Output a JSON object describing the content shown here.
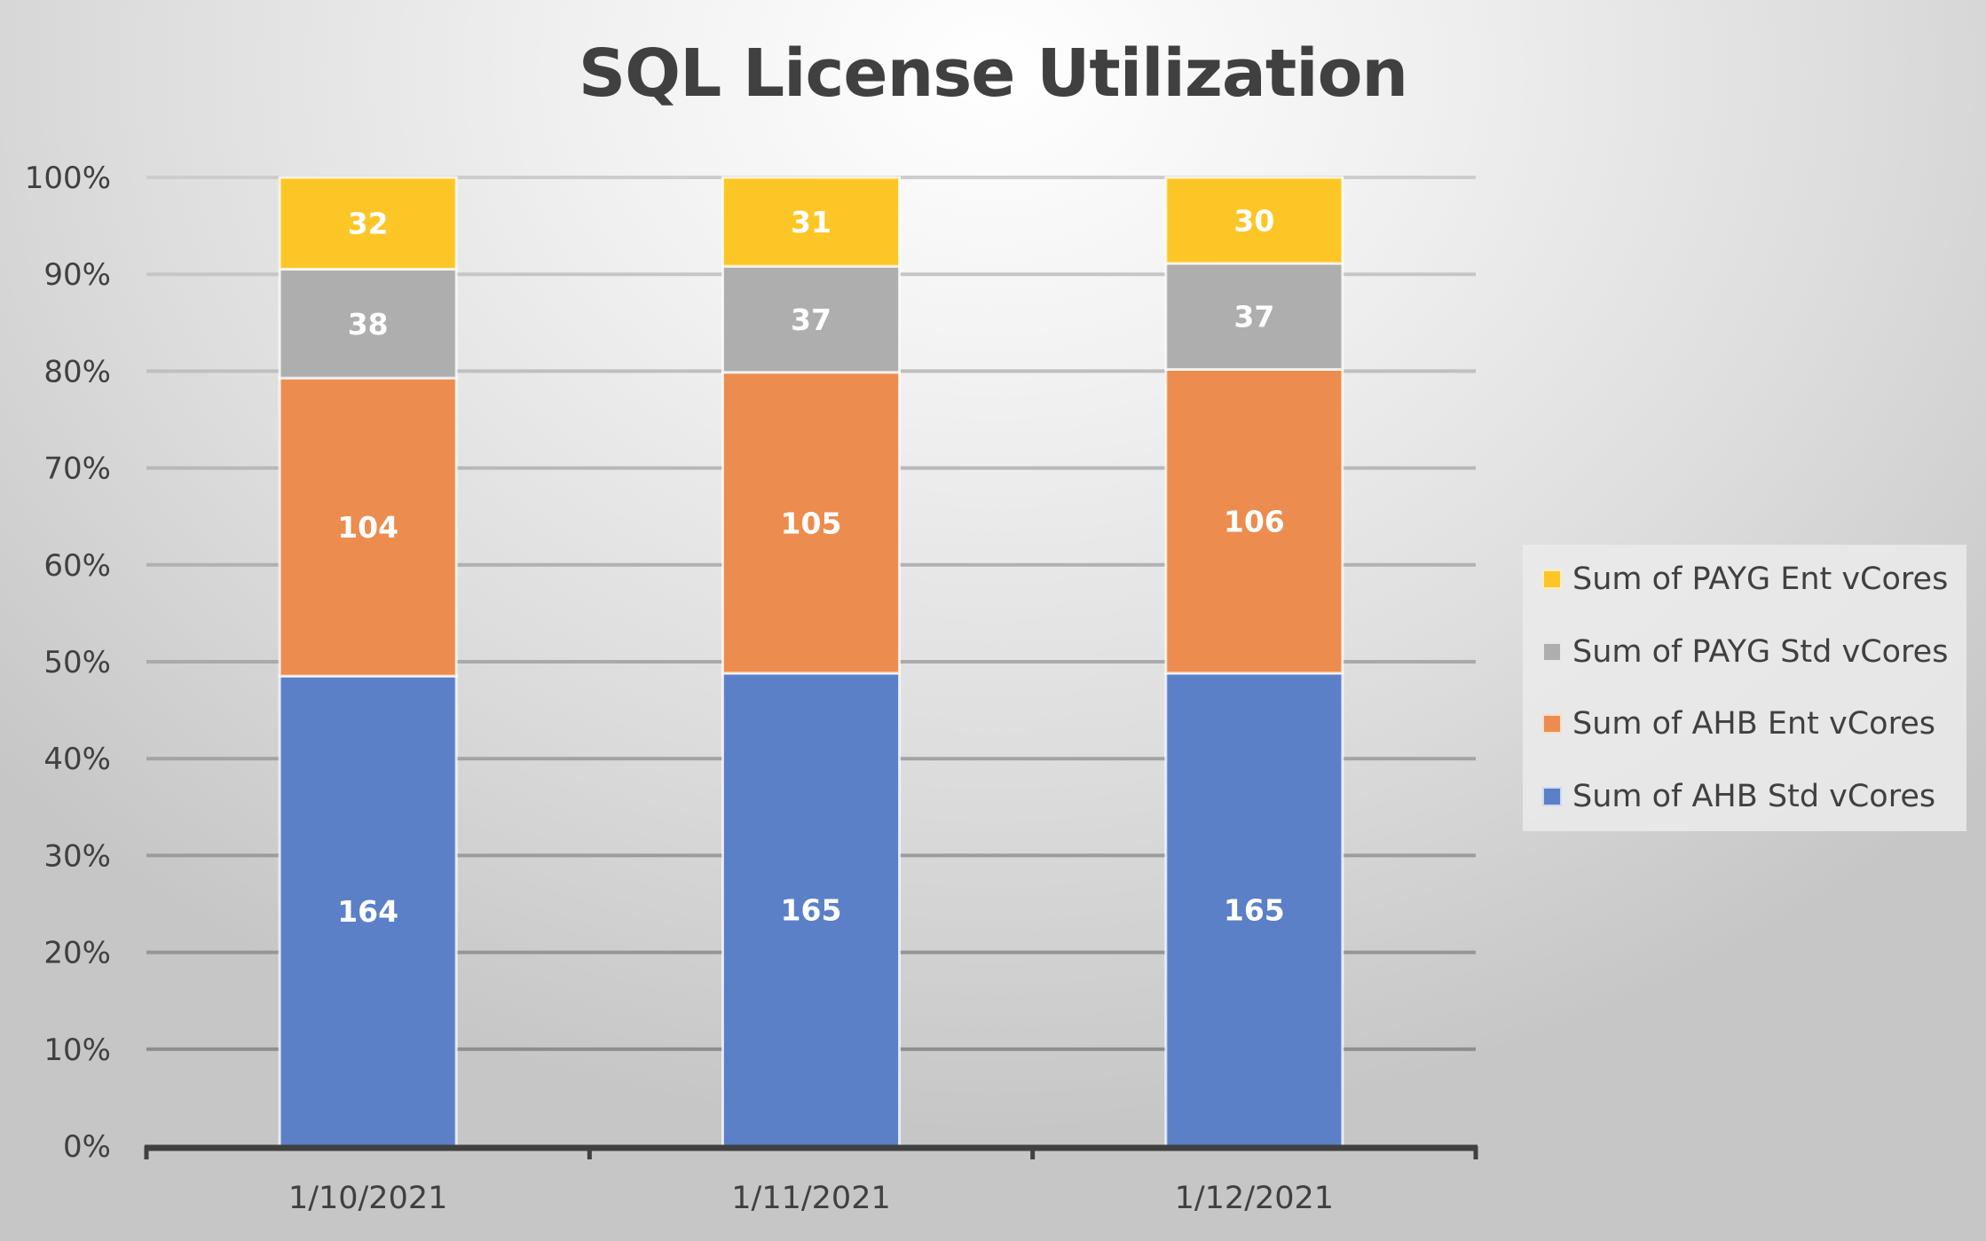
{
  "chart_data": {
    "type": "bar",
    "stacked": "percent",
    "title": "SQL License Utilization",
    "xlabel": "",
    "ylabel": "",
    "ylim": [
      0,
      100
    ],
    "grid": true,
    "legend_position": "right",
    "categories": [
      "1/10/2021",
      "1/11/2021",
      "1/12/2021"
    ],
    "y_ticks": [
      "0%",
      "10%",
      "20%",
      "30%",
      "40%",
      "50%",
      "60%",
      "70%",
      "80%",
      "90%",
      "100%"
    ],
    "series": [
      {
        "name": "Sum of AHB Std vCores",
        "color": "#5b80c8",
        "values": [
          164,
          165,
          165
        ]
      },
      {
        "name": "Sum of AHB Ent vCores",
        "color": "#ec8c4e",
        "values": [
          104,
          105,
          106
        ]
      },
      {
        "name": "Sum of PAYG Std vCores",
        "color": "#aeaeae",
        "values": [
          38,
          37,
          37
        ]
      },
      {
        "name": "Sum of PAYG Ent vCores",
        "color": "#fdc627",
        "values": [
          32,
          31,
          30
        ]
      }
    ],
    "legend_order": [
      3,
      2,
      1,
      0
    ]
  }
}
